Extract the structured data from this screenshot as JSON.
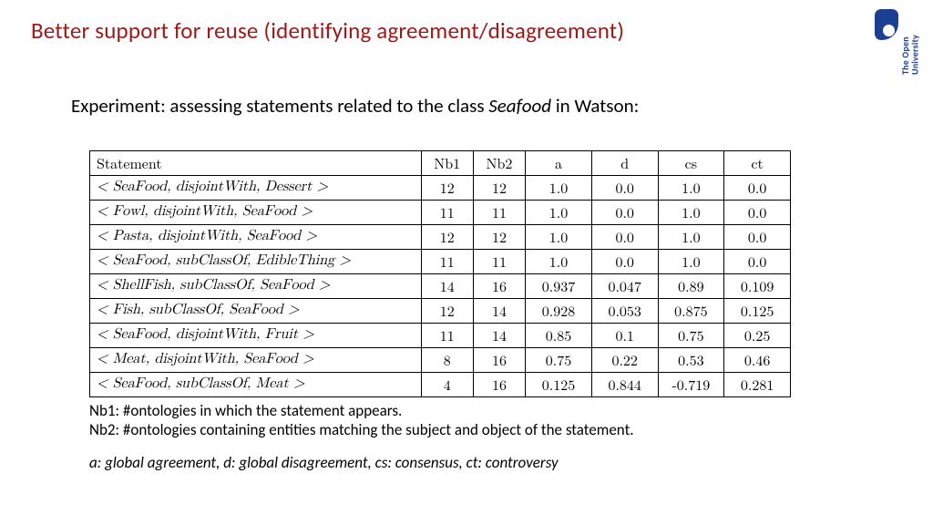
{
  "title": "Better support for reuse (identifying agreement/disagreement)",
  "logo": {
    "line1": "The Open",
    "line2": "University",
    "mark_color": "#1c3f94"
  },
  "subtitle_prefix": "Experiment: assessing statements related to the class ",
  "subtitle_italic": "Seafood",
  "subtitle_suffix": " in Watson:",
  "table": {
    "columns": [
      "Statement",
      "Nb1",
      "Nb2",
      "a",
      "d",
      "cs",
      "ct"
    ],
    "col_align": [
      "left",
      "center",
      "center",
      "center",
      "center",
      "center",
      "center"
    ],
    "rows": [
      [
        "< SeaFood, disjointWith, Dessert >",
        "12",
        "12",
        "1.0",
        "0.0",
        "1.0",
        "0.0"
      ],
      [
        "< Fowl, disjointWith, SeaFood >",
        "11",
        "11",
        "1.0",
        "0.0",
        "1.0",
        "0.0"
      ],
      [
        "< Pasta, disjointWith, SeaFood >",
        "12",
        "12",
        "1.0",
        "0.0",
        "1.0",
        "0.0"
      ],
      [
        "< SeaFood, subClassOf, EdibleThing >",
        "11",
        "11",
        "1.0",
        "0.0",
        "1.0",
        "0.0"
      ],
      [
        "< ShellFish, subClassOf, SeaFood >",
        "14",
        "16",
        "0.937",
        "0.047",
        "0.89",
        "0.109"
      ],
      [
        "< Fish, subClassOf, SeaFood >",
        "12",
        "14",
        "0.928",
        "0.053",
        "0.875",
        "0.125"
      ],
      [
        "< SeaFood, disjointWith, Fruit >",
        "11",
        "14",
        "0.85",
        "0.1",
        "0.75",
        "0.25"
      ],
      [
        "< Meat, disjointWith, SeaFood >",
        "8",
        "16",
        "0.75",
        "0.22",
        "0.53",
        "0.46"
      ],
      [
        "< SeaFood, subClassOf, Meat >",
        "4",
        "16",
        "0.125",
        "0.844",
        "-0.719",
        "0.281"
      ]
    ],
    "border_color": "#000000",
    "header_fontsize": 16,
    "cell_fontsize": 16
  },
  "notes": {
    "line1": "Nb1: #ontologies in which the statement appears.",
    "line2": "Nb2: #ontologies containing entities matching the subject and object of the statement."
  },
  "legend": "a: global agreement, d: global disagreement, cs: consensus, ct: controversy",
  "colors": {
    "title": "#a11818",
    "text": "#000000",
    "background": "#ffffff"
  }
}
